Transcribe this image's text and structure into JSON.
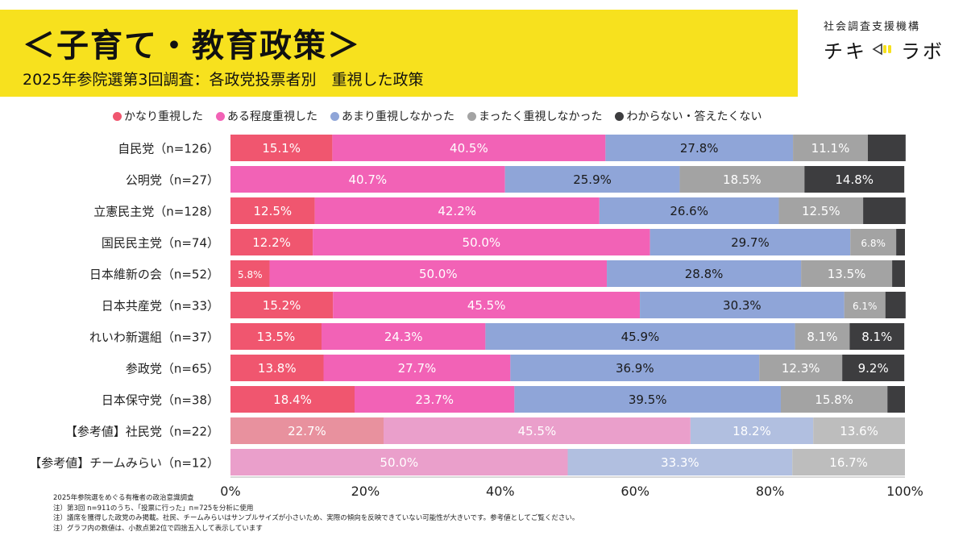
{
  "header": {
    "title": "＜子育て・教育政策＞",
    "subtitle": "2025年参院選第3回調査：各政党投票者別　重視した政策"
  },
  "brand": {
    "org": "社会調査支援機構",
    "logo_left": "チキ",
    "logo_right": "ラボ"
  },
  "colors": {
    "accent_yellow": "#f7e11e",
    "series": [
      "#f0566f",
      "#f262b6",
      "#8fa5d8",
      "#a3a3a3",
      "#3d3d3f"
    ],
    "series_faded": [
      "#e8919e",
      "#ea9fcb",
      "#b1bfe0",
      "#bdbdbd",
      "#8a8a8a"
    ]
  },
  "chart_data": {
    "type": "bar",
    "orientation": "horizontal",
    "stacked": true,
    "categories": [
      "自民党（n=126）",
      "公明党（n=27）",
      "立憲民主党（n=128）",
      "国民民主党（n=74）",
      "日本維新の会（n=52）",
      "日本共産党（n=33）",
      "れいわ新選組（n=37）",
      "参政党（n=65）",
      "日本保守党（n=38）",
      "【参考値】社民党（n=22）",
      "【参考値】チームみらい（n=12）"
    ],
    "reference_rows": [
      9,
      10
    ],
    "series": [
      {
        "name": "かなり重視した",
        "values": [
          15.1,
          0,
          12.5,
          12.2,
          5.8,
          15.2,
          13.5,
          13.8,
          18.4,
          22.7,
          0
        ]
      },
      {
        "name": "ある程度重視した",
        "values": [
          40.5,
          40.7,
          42.2,
          50.0,
          50.0,
          45.5,
          24.3,
          27.7,
          23.7,
          45.5,
          50.0
        ]
      },
      {
        "name": "あまり重視しなかった",
        "values": [
          27.8,
          25.9,
          26.6,
          29.7,
          28.8,
          30.3,
          45.9,
          36.9,
          39.5,
          18.2,
          33.3
        ]
      },
      {
        "name": "まったく重視しなかった",
        "values": [
          11.1,
          18.5,
          12.5,
          6.8,
          13.5,
          6.1,
          8.1,
          12.3,
          15.8,
          13.6,
          16.7
        ]
      },
      {
        "name": "わからない・答えたくない",
        "values": [
          5.6,
          14.8,
          6.3,
          1.3,
          1.9,
          3.0,
          8.1,
          9.2,
          2.6,
          0,
          0
        ]
      }
    ],
    "labels": [
      [
        "15.1%",
        "",
        "12.5%",
        "12.2%",
        "5.8%",
        "15.2%",
        "13.5%",
        "13.8%",
        "18.4%",
        "22.7%",
        ""
      ],
      [
        "40.5%",
        "40.7%",
        "42.2%",
        "50.0%",
        "50.0%",
        "45.5%",
        "24.3%",
        "27.7%",
        "23.7%",
        "45.5%",
        "50.0%"
      ],
      [
        "27.8%",
        "25.9%",
        "26.6%",
        "29.7%",
        "28.8%",
        "30.3%",
        "45.9%",
        "36.9%",
        "39.5%",
        "18.2%",
        "33.3%"
      ],
      [
        "11.1%",
        "18.5%",
        "12.5%",
        "6.8%",
        "13.5%",
        "6.1%",
        "8.1%",
        "12.3%",
        "15.8%",
        "13.6%",
        "16.7%"
      ],
      [
        "",
        "14.8%",
        "",
        "",
        "",
        "",
        "8.1%",
        "9.2%",
        "",
        "",
        ""
      ]
    ],
    "x_ticks": [
      "0%",
      "20%",
      "40%",
      "60%",
      "80%",
      "100%"
    ],
    "xlim": [
      0,
      100
    ],
    "legend_position": "top"
  },
  "notes": [
    "2025年参院選をめぐる有権者の政治意識調査",
    "注）第3回 n=911のうち、「投票に行った」n=725を分析に使用",
    "注）議席を獲得した政党のみ掲載。社民、チームみらいはサンプルサイズが小さいため、実際の傾向を反映できていない可能性が大きいです。参考値としてご覧ください。",
    "注）グラフ内の数値は、小数点第2位で四捨五入して表示しています"
  ]
}
